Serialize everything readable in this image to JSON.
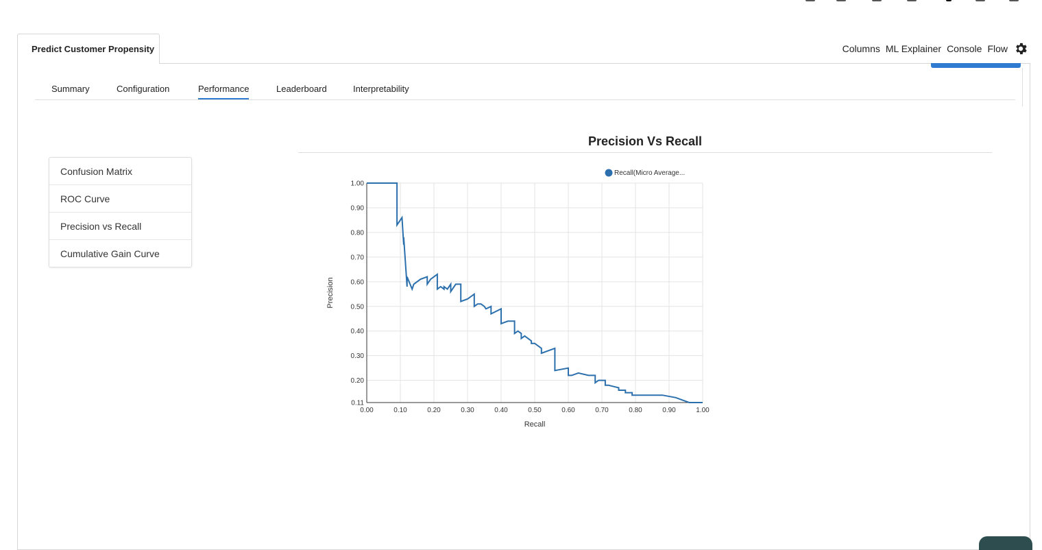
{
  "app": {
    "main_tab": "Predict Customer Propensity"
  },
  "top_nav": {
    "items": [
      "Columns",
      "ML Explainer",
      "Console",
      "Flow"
    ],
    "settings_icon": "gear-icon"
  },
  "sub_tabs": {
    "items": [
      "Summary",
      "Configuration",
      "Performance",
      "Leaderboard",
      "Interpretability"
    ],
    "active": "Performance"
  },
  "side_menu": {
    "items": [
      "Confusion Matrix",
      "ROC Curve",
      "Precision vs Recall",
      "Cumulative Gain Curve"
    ]
  },
  "colors": {
    "accent": "#2f7bd1",
    "series": "#2b6fad"
  },
  "chart_data": {
    "type": "line",
    "title": "Precision Vs Recall",
    "xlabel": "Recall",
    "ylabel": "Precision",
    "xlim": [
      0,
      1
    ],
    "ylim": [
      0.11,
      1.0
    ],
    "x_ticks": [
      "0.00",
      "0.10",
      "0.20",
      "0.30",
      "0.40",
      "0.50",
      "0.60",
      "0.70",
      "0.80",
      "0.90",
      "1.00"
    ],
    "y_ticks": [
      "1.00",
      "0.90",
      "0.80",
      "0.70",
      "0.60",
      "0.50",
      "0.40",
      "0.30",
      "0.20",
      "0.11"
    ],
    "legend": {
      "position": "top-right",
      "label": "Recall(Micro Average..."
    },
    "grid": true,
    "series": [
      {
        "name": "Recall(Micro Average...",
        "x": [
          0.0,
          0.09,
          0.09,
          0.105,
          0.11,
          0.11,
          0.12,
          0.12,
          0.135,
          0.14,
          0.16,
          0.18,
          0.18,
          0.19,
          0.21,
          0.21,
          0.22,
          0.23,
          0.23,
          0.24,
          0.25,
          0.25,
          0.265,
          0.28,
          0.28,
          0.3,
          0.32,
          0.32,
          0.33,
          0.34,
          0.35,
          0.355,
          0.37,
          0.37,
          0.4,
          0.4,
          0.42,
          0.44,
          0.44,
          0.45,
          0.46,
          0.46,
          0.47,
          0.49,
          0.49,
          0.5,
          0.52,
          0.52,
          0.56,
          0.56,
          0.6,
          0.6,
          0.61,
          0.63,
          0.66,
          0.66,
          0.67,
          0.68,
          0.68,
          0.69,
          0.71,
          0.71,
          0.72,
          0.72,
          0.75,
          0.75,
          0.76,
          0.77,
          0.77,
          0.79,
          0.79,
          0.82,
          0.85,
          0.87,
          0.88,
          0.92,
          0.92,
          0.94,
          0.94,
          0.96,
          0.96,
          0.97,
          1.0
        ],
        "y": [
          1.0,
          1.0,
          0.83,
          0.86,
          0.75,
          0.78,
          0.58,
          0.62,
          0.57,
          0.59,
          0.61,
          0.62,
          0.59,
          0.61,
          0.63,
          0.57,
          0.58,
          0.57,
          0.58,
          0.57,
          0.59,
          0.56,
          0.59,
          0.59,
          0.52,
          0.53,
          0.55,
          0.5,
          0.51,
          0.51,
          0.5,
          0.49,
          0.5,
          0.47,
          0.49,
          0.43,
          0.44,
          0.44,
          0.39,
          0.4,
          0.39,
          0.37,
          0.38,
          0.36,
          0.35,
          0.35,
          0.33,
          0.31,
          0.33,
          0.24,
          0.25,
          0.22,
          0.22,
          0.23,
          0.22,
          0.22,
          0.22,
          0.22,
          0.19,
          0.2,
          0.2,
          0.18,
          0.18,
          0.18,
          0.17,
          0.16,
          0.16,
          0.16,
          0.15,
          0.15,
          0.14,
          0.14,
          0.14,
          0.14,
          0.14,
          0.13,
          0.13,
          0.12,
          0.12,
          0.11,
          0.11,
          0.11,
          0.11
        ]
      }
    ]
  }
}
